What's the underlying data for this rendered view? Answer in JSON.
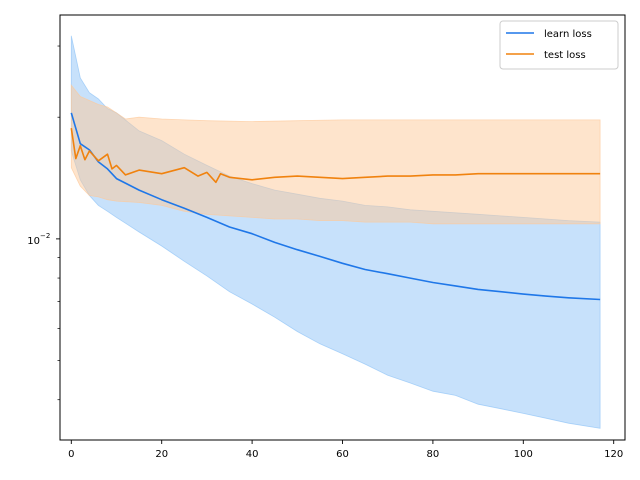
{
  "chart_data": {
    "type": "line",
    "title": "",
    "xlabel": "",
    "ylabel": "",
    "xlim": [
      -2.5,
      122.5
    ],
    "ylim": [
      0.00318,
      0.0358
    ],
    "y_scale": "log",
    "grid": false,
    "legend_position": "top-right",
    "x_ticks": [
      0,
      20,
      40,
      60,
      80,
      100,
      120
    ],
    "x_tick_labels": [
      "0",
      "20",
      "40",
      "60",
      "80",
      "100",
      "120"
    ],
    "y_ticks": [
      0.01
    ],
    "y_tick_labels": [
      "10",
      "−2"
    ],
    "y_minor_ticks": [
      0.004,
      0.005,
      0.006,
      0.007,
      0.008,
      0.009,
      0.02,
      0.03
    ],
    "series": [
      {
        "name": "learn loss",
        "color": "#1f77e8",
        "band_color": "#8fc3f7",
        "points": [
          [
            0,
            0.0205
          ],
          [
            2,
            0.0172
          ],
          [
            4,
            0.0166
          ],
          [
            6,
            0.0155
          ],
          [
            8,
            0.0149
          ],
          [
            10,
            0.0141
          ],
          [
            15,
            0.0132
          ],
          [
            20,
            0.0125
          ],
          [
            25,
            0.0119
          ],
          [
            30,
            0.0113
          ],
          [
            35,
            0.0107
          ],
          [
            40,
            0.0103
          ],
          [
            45,
            0.0098
          ],
          [
            50,
            0.0094
          ],
          [
            55,
            0.00905
          ],
          [
            60,
            0.0087
          ],
          [
            65,
            0.0084
          ],
          [
            70,
            0.0082
          ],
          [
            75,
            0.008
          ],
          [
            80,
            0.0078
          ],
          [
            85,
            0.00765
          ],
          [
            90,
            0.0075
          ],
          [
            95,
            0.0074
          ],
          [
            100,
            0.0073
          ],
          [
            105,
            0.00722
          ],
          [
            110,
            0.00715
          ],
          [
            117,
            0.00708
          ]
        ],
        "band_upper": [
          [
            0,
            0.0318
          ],
          [
            2,
            0.025
          ],
          [
            4,
            0.023
          ],
          [
            6,
            0.0222
          ],
          [
            8,
            0.021
          ],
          [
            10,
            0.0205
          ],
          [
            15,
            0.0185
          ],
          [
            20,
            0.0175
          ],
          [
            25,
            0.0162
          ],
          [
            30,
            0.0152
          ],
          [
            35,
            0.0143
          ],
          [
            40,
            0.0137
          ],
          [
            45,
            0.0132
          ],
          [
            50,
            0.0129
          ],
          [
            55,
            0.0126
          ],
          [
            60,
            0.0124
          ],
          [
            65,
            0.0121
          ],
          [
            70,
            0.012
          ],
          [
            75,
            0.0118
          ],
          [
            80,
            0.0117
          ],
          [
            85,
            0.0116
          ],
          [
            90,
            0.0115
          ],
          [
            95,
            0.0114
          ],
          [
            100,
            0.0113
          ],
          [
            105,
            0.0112
          ],
          [
            110,
            0.0111
          ],
          [
            117,
            0.011
          ]
        ],
        "band_lower": [
          [
            0,
            0.0165
          ],
          [
            2,
            0.014
          ],
          [
            4,
            0.0128
          ],
          [
            6,
            0.0121
          ],
          [
            8,
            0.0117
          ],
          [
            10,
            0.0113
          ],
          [
            15,
            0.0104
          ],
          [
            20,
            0.0096
          ],
          [
            25,
            0.0088
          ],
          [
            30,
            0.0081
          ],
          [
            35,
            0.0074
          ],
          [
            40,
            0.0069
          ],
          [
            45,
            0.0064
          ],
          [
            50,
            0.0059
          ],
          [
            55,
            0.0055
          ],
          [
            60,
            0.0052
          ],
          [
            65,
            0.0049
          ],
          [
            70,
            0.0046
          ],
          [
            75,
            0.0044
          ],
          [
            80,
            0.0042
          ],
          [
            85,
            0.0041
          ],
          [
            90,
            0.0039
          ],
          [
            95,
            0.0038
          ],
          [
            100,
            0.0037
          ],
          [
            105,
            0.0036
          ],
          [
            110,
            0.0035
          ],
          [
            117,
            0.0034
          ]
        ]
      },
      {
        "name": "test loss",
        "color": "#f0820e",
        "band_color": "#fdc99a",
        "points": [
          [
            0,
            0.0188
          ],
          [
            1,
            0.0158
          ],
          [
            2,
            0.017
          ],
          [
            3,
            0.0157
          ],
          [
            4,
            0.0165
          ],
          [
            6,
            0.0156
          ],
          [
            8,
            0.0162
          ],
          [
            9,
            0.0149
          ],
          [
            10,
            0.0152
          ],
          [
            12,
            0.0144
          ],
          [
            15,
            0.0148
          ],
          [
            20,
            0.0145
          ],
          [
            25,
            0.015
          ],
          [
            28,
            0.0143
          ],
          [
            30,
            0.0146
          ],
          [
            32,
            0.0138
          ],
          [
            33,
            0.0145
          ],
          [
            35,
            0.0142
          ],
          [
            40,
            0.014
          ],
          [
            45,
            0.0142
          ],
          [
            50,
            0.0143
          ],
          [
            55,
            0.0142
          ],
          [
            60,
            0.0141
          ],
          [
            65,
            0.0142
          ],
          [
            70,
            0.0143
          ],
          [
            75,
            0.0143
          ],
          [
            80,
            0.0144
          ],
          [
            85,
            0.0144
          ],
          [
            90,
            0.0145
          ],
          [
            95,
            0.0145
          ],
          [
            100,
            0.0145
          ],
          [
            105,
            0.0145
          ],
          [
            110,
            0.0145
          ],
          [
            117,
            0.0145
          ]
        ],
        "band_upper": [
          [
            0,
            0.024
          ],
          [
            2,
            0.0225
          ],
          [
            4,
            0.022
          ],
          [
            6,
            0.0215
          ],
          [
            8,
            0.0212
          ],
          [
            10,
            0.0205
          ],
          [
            12,
            0.0198
          ],
          [
            15,
            0.02
          ],
          [
            20,
            0.0198
          ],
          [
            25,
            0.0197
          ],
          [
            30,
            0.0196
          ],
          [
            40,
            0.0195
          ],
          [
            50,
            0.0196
          ],
          [
            60,
            0.0197
          ],
          [
            70,
            0.0197
          ],
          [
            80,
            0.0197
          ],
          [
            90,
            0.0197
          ],
          [
            100,
            0.0197
          ],
          [
            110,
            0.0197
          ],
          [
            117,
            0.0197
          ]
        ],
        "band_lower": [
          [
            0,
            0.015
          ],
          [
            2,
            0.0135
          ],
          [
            4,
            0.0128
          ],
          [
            6,
            0.0127
          ],
          [
            8,
            0.0125
          ],
          [
            10,
            0.0124
          ],
          [
            15,
            0.0123
          ],
          [
            20,
            0.0121
          ],
          [
            25,
            0.0117
          ],
          [
            30,
            0.0115
          ],
          [
            35,
            0.0114
          ],
          [
            40,
            0.0113
          ],
          [
            45,
            0.0112
          ],
          [
            50,
            0.0112
          ],
          [
            55,
            0.0111
          ],
          [
            60,
            0.0111
          ],
          [
            65,
            0.011
          ],
          [
            70,
            0.011
          ],
          [
            75,
            0.011
          ],
          [
            80,
            0.0109
          ],
          [
            90,
            0.0109
          ],
          [
            100,
            0.0109
          ],
          [
            110,
            0.0109
          ],
          [
            117,
            0.0109
          ]
        ]
      }
    ]
  }
}
